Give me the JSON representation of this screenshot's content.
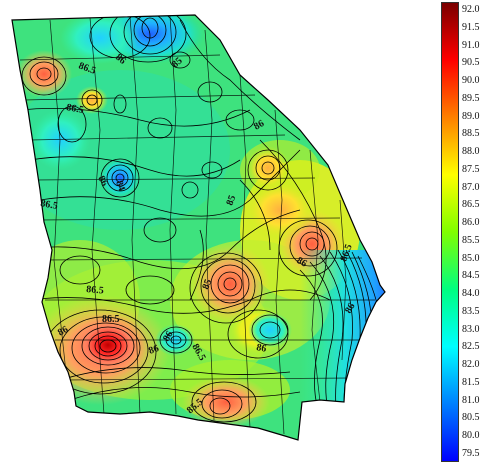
{
  "map": {
    "region": "Georgia",
    "value_range": [
      79.5,
      92.0
    ],
    "contour_labels": [
      "86.5",
      "86",
      "85",
      "84",
      "86.5",
      "85",
      "86.5",
      "86",
      "86.5",
      "85",
      "86",
      "86.5",
      "86",
      "86",
      "86.5",
      "86",
      "86",
      "85.5",
      "86",
      "86.5",
      "86"
    ],
    "hotspots": [
      {
        "name": "southwest-hotspot",
        "value": 92.0
      },
      {
        "name": "central-hotspot",
        "value": 89.5
      },
      {
        "name": "east-hotspot",
        "value": 89.0
      },
      {
        "name": "northwest-hotspot",
        "value": 89.5
      },
      {
        "name": "south-hotspot",
        "value": 89.0
      },
      {
        "name": "northeast-hotspot",
        "value": 88.5
      }
    ],
    "coolspots": [
      {
        "name": "north-mountain-coolspot",
        "value": 82.0
      },
      {
        "name": "coastal-coolspot",
        "value": 81.5
      },
      {
        "name": "north-central-coolspot",
        "value": 83.5
      },
      {
        "name": "southwest-coolspot",
        "value": 83.0
      }
    ]
  },
  "colorbar": {
    "ticks": [
      "92.0",
      "91.5",
      "91.0",
      "90.5",
      "90.0",
      "89.5",
      "89.0",
      "88.5",
      "88.0",
      "87.5",
      "87.0",
      "86.5",
      "86.0",
      "85.5",
      "85.0",
      "84.5",
      "84.0",
      "83.5",
      "83.0",
      "82.5",
      "82.0",
      "81.5",
      "81.0",
      "80.5",
      "80.0",
      "79.5"
    ],
    "colors": [
      "#7a0000",
      "#ff0000",
      "#ff8000",
      "#ffff00",
      "#80ff00",
      "#00ff80",
      "#00ffff",
      "#0080ff",
      "#0000ff"
    ]
  }
}
